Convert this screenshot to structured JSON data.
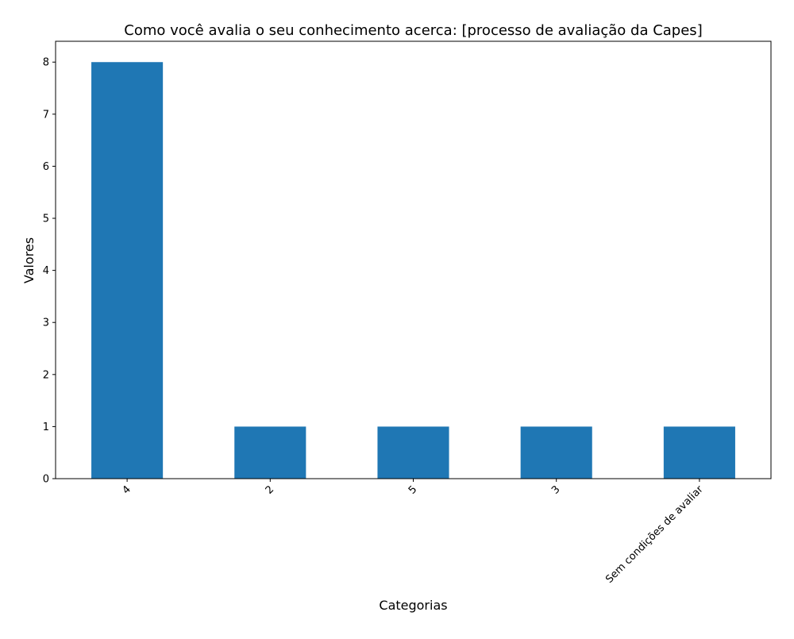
{
  "chart_data": {
    "type": "bar",
    "title": "Como você avalia o seu conhecimento acerca: [processo de avaliação da Capes]",
    "xlabel": "Categorias",
    "ylabel": "Valores",
    "categories": [
      "4",
      "2",
      "5",
      "3",
      "Sem condições de avaliar"
    ],
    "values": [
      8,
      1,
      1,
      1,
      1
    ],
    "ylim": [
      0,
      8.4
    ],
    "yticks": [
      0,
      1,
      2,
      3,
      4,
      5,
      6,
      7,
      8
    ],
    "bar_color": "#1f77b4",
    "grid": false,
    "legend": "none",
    "x_tick_rotation_deg": 45
  }
}
